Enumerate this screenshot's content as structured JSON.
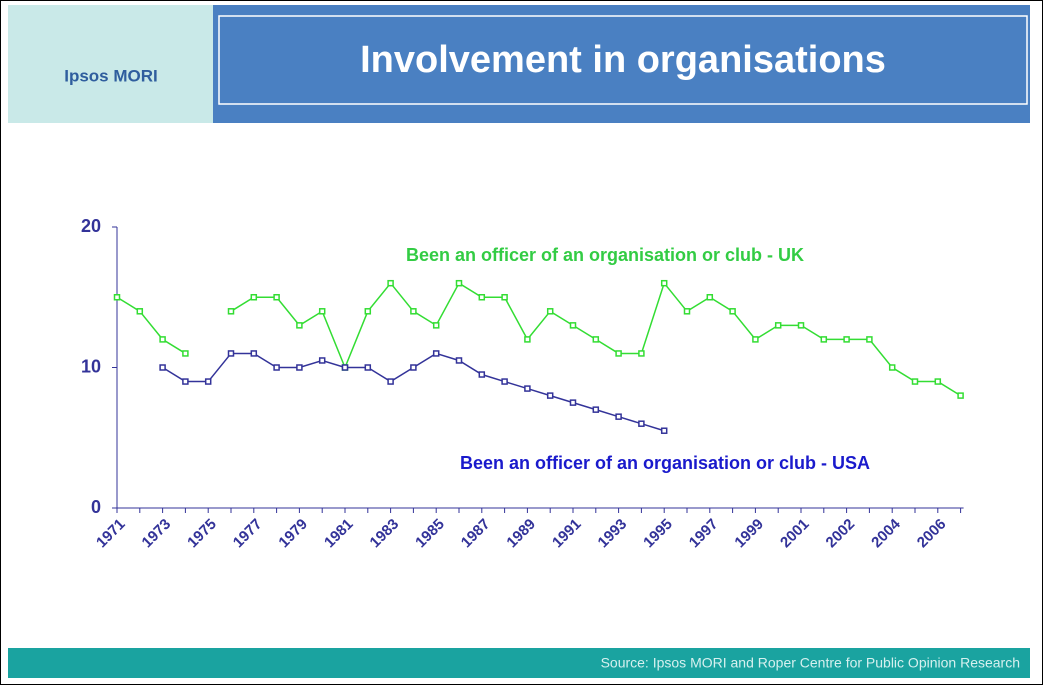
{
  "header": {
    "brand": "Ipsos MORI"
  },
  "chart_data": {
    "type": "line",
    "title": "Involvement in organisations",
    "source": "Source: Ipsos MORI and Roper Centre for Public Opinion Research",
    "categories": [
      "1971",
      null,
      "1973",
      null,
      "1975",
      null,
      "1977",
      null,
      "1979",
      null,
      "1981",
      null,
      "1983",
      null,
      "1985",
      null,
      "1987",
      null,
      "1989",
      null,
      "1991",
      null,
      "1993",
      null,
      "1995",
      null,
      "1997",
      null,
      "1999",
      null,
      "2001",
      null,
      "2002",
      null,
      "2004",
      null,
      "2006",
      null
    ],
    "series": [
      {
        "name": "Been an officer of an organisation or club  - UK",
        "color": "#33dd33",
        "values": [
          15,
          14,
          12,
          11,
          null,
          14,
          15,
          15,
          13,
          14,
          10,
          14,
          16,
          14,
          13,
          16,
          15,
          15,
          12,
          14,
          13,
          12,
          11,
          11,
          16,
          14,
          15,
          14,
          12,
          13,
          13,
          12,
          12,
          12,
          10,
          9,
          9,
          8
        ]
      },
      {
        "name": "Been an officer of an organisation or club  - USA",
        "color": "#333399",
        "values": [
          null,
          null,
          10,
          9,
          9,
          11,
          11,
          10,
          10,
          10.5,
          10,
          10,
          9,
          10,
          11,
          10.5,
          9.5,
          9,
          8.5,
          8,
          7.5,
          7,
          6.5,
          6,
          5.5,
          null,
          null,
          null,
          null,
          null,
          null,
          null,
          null,
          null,
          null,
          null,
          null,
          null
        ]
      }
    ],
    "ylim": [
      0,
      20
    ],
    "yticks": [
      0,
      10,
      20
    ],
    "grid": false
  }
}
